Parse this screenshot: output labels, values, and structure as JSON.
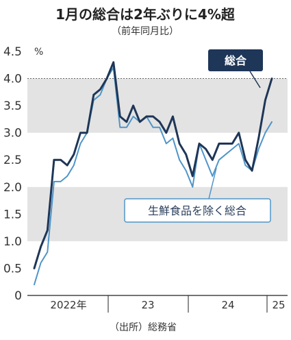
{
  "chart_data": {
    "type": "line",
    "title": "1月の総合は2年ぶりに4%超",
    "subtitle": "（前年同月比）",
    "unit": "%",
    "ylim": [
      0,
      4.5
    ],
    "y_ticks": [
      "0",
      "0.5",
      "1.0",
      "1.5",
      "2.0",
      "2.5",
      "3.0",
      "3.5",
      "4.0",
      "4.5"
    ],
    "x_labels": [
      "2022年",
      "23",
      "24",
      "25"
    ],
    "bands": [
      [
        1.0,
        2.0
      ],
      [
        3.0,
        4.0
      ]
    ],
    "reference_line": 4.0,
    "source": "（出所）総務省",
    "series": [
      {
        "name": "総合",
        "color": "#1e3657",
        "values": [
          0.5,
          0.9,
          1.2,
          2.5,
          2.5,
          2.4,
          2.6,
          3.0,
          3.0,
          3.7,
          3.8,
          4.0,
          4.3,
          3.3,
          3.2,
          3.5,
          3.2,
          3.3,
          3.3,
          3.2,
          3.0,
          3.3,
          2.8,
          2.6,
          2.2,
          2.8,
          2.7,
          2.5,
          2.8,
          2.8,
          2.8,
          3.0,
          2.5,
          2.3,
          2.9,
          3.6,
          4.0
        ]
      },
      {
        "name": "生鮮食品を除く総合",
        "color": "#4f95c8",
        "values": [
          0.2,
          0.6,
          0.8,
          2.1,
          2.1,
          2.2,
          2.4,
          2.8,
          3.0,
          3.6,
          3.7,
          4.0,
          4.2,
          3.1,
          3.1,
          3.3,
          3.2,
          3.3,
          3.1,
          3.1,
          2.8,
          2.9,
          2.5,
          2.3,
          2.0,
          2.8,
          2.5,
          2.2,
          2.5,
          2.6,
          2.7,
          2.8,
          2.4,
          2.3,
          2.7,
          3.0,
          3.2
        ]
      }
    ]
  }
}
